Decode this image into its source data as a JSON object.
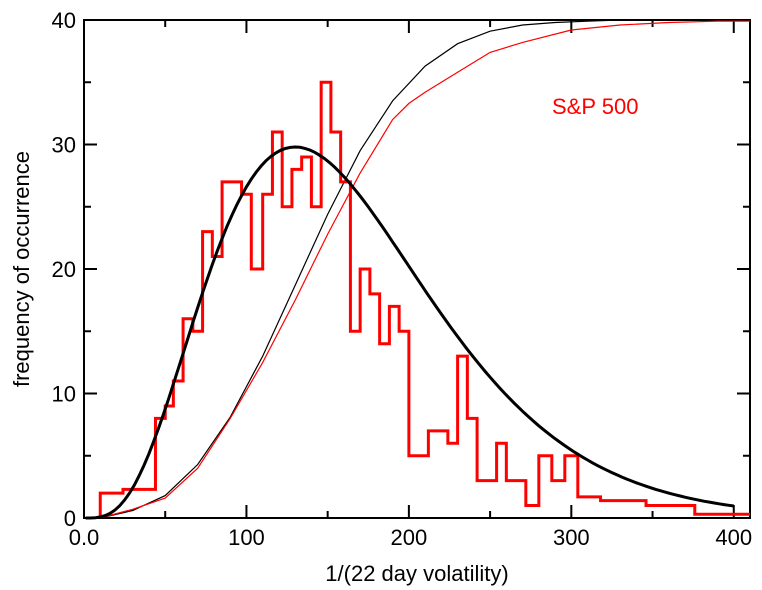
{
  "chart_data": {
    "type": "line",
    "title": "",
    "xlabel": "1/(22 day volatility)",
    "ylabel": "frequency of occurrence",
    "xlim": [
      0,
      410
    ],
    "ylim": [
      0,
      40
    ],
    "x_ticks": [
      0,
      100,
      200,
      300,
      400
    ],
    "x_tick_labels": [
      "0.0",
      "100",
      "200",
      "300",
      "400"
    ],
    "y_ticks": [
      0,
      10,
      20,
      30,
      40
    ],
    "y_tick_labels": [
      "0",
      "10",
      "20",
      "30",
      "40"
    ],
    "grid": false,
    "annotation": {
      "text": "S&P 500",
      "color": "#ff0000"
    },
    "histogram": {
      "color": "#ff0000",
      "edges": [
        10,
        24,
        44,
        50,
        55,
        61,
        67,
        73,
        79,
        85,
        97,
        103,
        110,
        116,
        122,
        128,
        134,
        140,
        146,
        152,
        158,
        164,
        170,
        176,
        182,
        188,
        194,
        200,
        212,
        224,
        230,
        236,
        242,
        248,
        254,
        260,
        266,
        272,
        280,
        288,
        296,
        304,
        318,
        346,
        376,
        410
      ],
      "values": [
        2,
        2.3,
        8,
        9,
        11,
        16,
        15,
        23,
        21,
        27,
        26,
        20,
        26,
        31,
        25,
        28,
        29,
        25,
        35,
        31,
        27,
        15,
        20,
        18,
        14,
        17,
        15,
        5,
        7,
        6,
        13,
        8,
        3,
        3,
        6,
        3,
        3,
        1,
        5,
        3,
        5,
        1.7,
        1.4,
        1,
        0.3
      ]
    },
    "fit_curve": {
      "color": "#000000",
      "peak_x": 130,
      "peak_y": 29.8
    },
    "cumulative_curves": [
      {
        "color": "#000000",
        "x": [
          10,
          30,
          50,
          70,
          90,
          110,
          130,
          150,
          170,
          190,
          210,
          230,
          250,
          270,
          290,
          310,
          330,
          350,
          380,
          410
        ],
        "y": [
          0,
          0.6,
          1.8,
          4.3,
          8.1,
          13,
          18.7,
          24.4,
          29.5,
          33.5,
          36.3,
          38.1,
          39.1,
          39.6,
          39.8,
          39.9,
          40,
          40,
          40,
          40
        ]
      },
      {
        "color": "#ff0000",
        "x": [
          10,
          30,
          50,
          70,
          90,
          110,
          130,
          150,
          170,
          190,
          200,
          210,
          230,
          250,
          270,
          300,
          330,
          360,
          390,
          410
        ],
        "y": [
          0,
          0.7,
          1.6,
          4,
          8,
          12.5,
          17.5,
          22.8,
          27.7,
          32,
          33.3,
          34.2,
          35.8,
          37.4,
          38.2,
          39.2,
          39.6,
          39.8,
          39.9,
          39.9
        ]
      }
    ]
  }
}
